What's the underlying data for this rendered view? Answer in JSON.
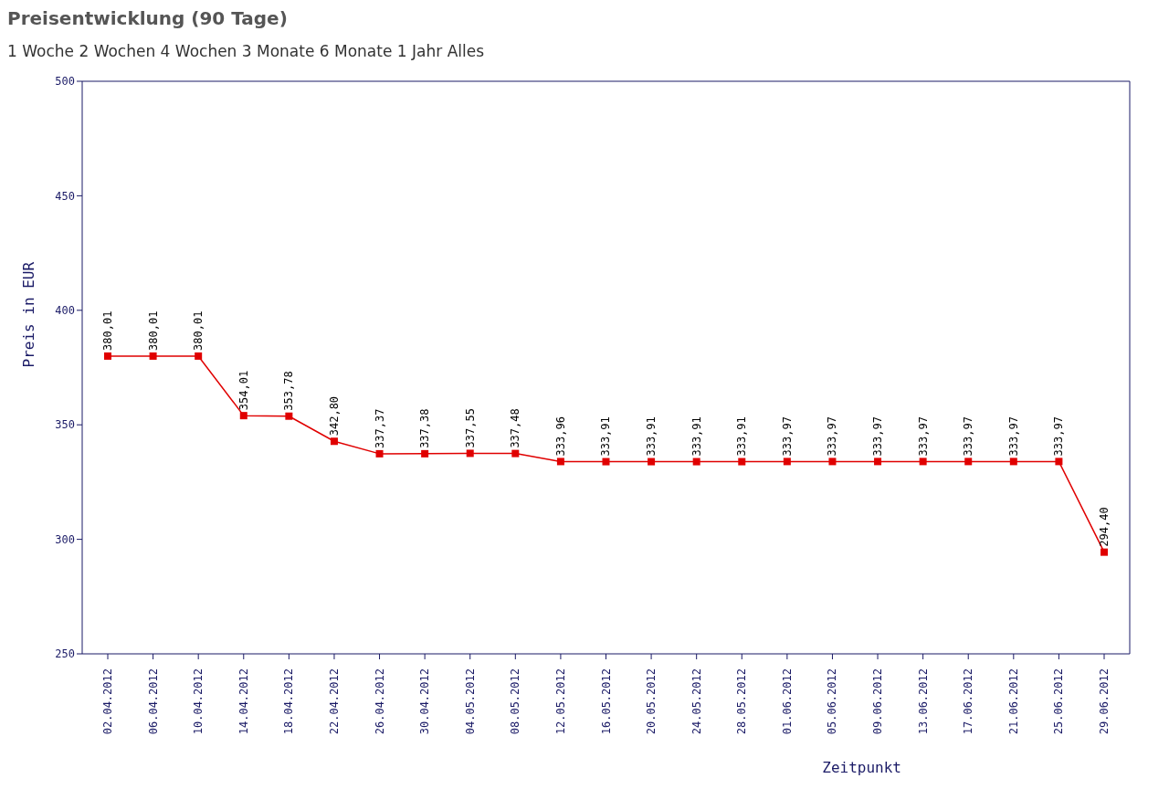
{
  "chart_data": {
    "type": "line",
    "title": "Preisentwicklung (90 Tage)",
    "subtitle": "1 Woche 2 Wochen 4 Wochen 3 Monate 6 Monate 1 Jahr Alles",
    "xlabel": "Zeitpunkt",
    "ylabel": "Preis in EUR",
    "categories": [
      "02.04.2012",
      "06.04.2012",
      "10.04.2012",
      "14.04.2012",
      "18.04.2012",
      "22.04.2012",
      "26.04.2012",
      "30.04.2012",
      "04.05.2012",
      "08.05.2012",
      "12.05.2012",
      "16.05.2012",
      "20.05.2012",
      "24.05.2012",
      "28.05.2012",
      "01.06.2012",
      "05.06.2012",
      "09.06.2012",
      "13.06.2012",
      "17.06.2012",
      "21.06.2012",
      "25.06.2012",
      "29.06.2012"
    ],
    "values": [
      380.01,
      380.01,
      380.01,
      354.01,
      353.78,
      342.8,
      337.37,
      337.38,
      337.55,
      337.48,
      333.96,
      333.91,
      333.91,
      333.91,
      333.91,
      333.97,
      333.97,
      333.97,
      333.97,
      333.97,
      333.97,
      333.97,
      294.4
    ],
    "value_labels": [
      "380,01",
      "380,01",
      "380,01",
      "354,01",
      "353,78",
      "342,80",
      "337,37",
      "337,38",
      "337,55",
      "337,48",
      "333,96",
      "333,91",
      "333,91",
      "333,91",
      "333,91",
      "333,97",
      "333,97",
      "333,97",
      "333,97",
      "333,97",
      "333,97",
      "333,97",
      "294,40"
    ],
    "color": "#e00000",
    "marker": "square",
    "line_style": "solid",
    "grid": false,
    "ylim": [
      250,
      500
    ],
    "yticks": [
      250,
      300,
      350,
      400,
      450,
      500
    ]
  }
}
